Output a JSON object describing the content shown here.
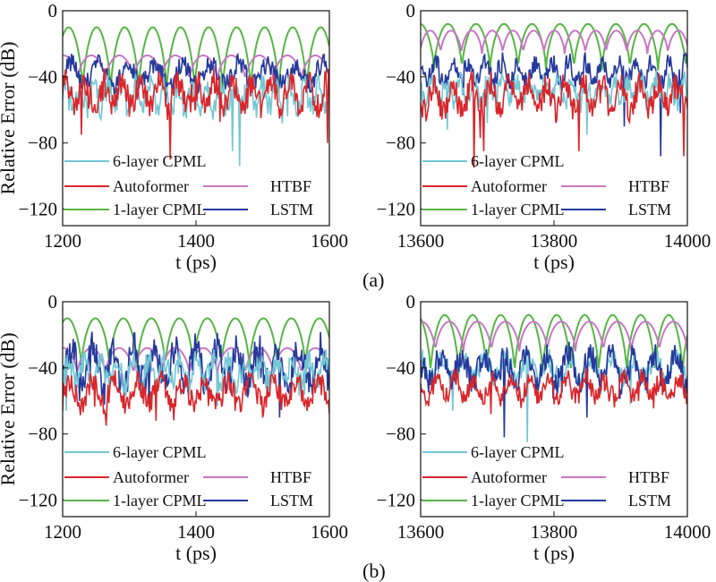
{
  "panel_labels": [
    "(a)",
    "(b)"
  ],
  "colors": {
    "6-layer CPML": "#74c7d4",
    "Autoformer": "#d9262b",
    "HTBF": "#c677c4",
    "1-layer CPML": "#57b545",
    "LSTM": "#24399b"
  },
  "chart_data": [
    {
      "type": "line",
      "panel": "(a) left",
      "xlabel": "t (ps)",
      "ylabel": "Relative Error (dB)",
      "xlim": [
        1200,
        1600
      ],
      "ylim": [
        -130,
        0
      ],
      "xticks": [
        1200,
        1400,
        1600
      ],
      "yticks": [
        0,
        -40,
        -80,
        -120
      ],
      "ytick_labels": [
        "0",
        "−40",
        "−80",
        "−120"
      ],
      "legend": [
        {
          "label": "6-layer CPML",
          "series": "6-layer CPML"
        },
        {
          "label": "Autoformer",
          "series": "Autoformer"
        },
        {
          "label": "HTBF",
          "series": "HTBF"
        },
        {
          "label": "1-layer CPML",
          "series": "1-layer CPML"
        },
        {
          "label": "LSTM",
          "series": "LSTM"
        }
      ],
      "series": [
        {
          "name": "1-layer CPML",
          "kind": "arch",
          "base": -10,
          "dip": -50,
          "period": 42,
          "phase": 1230
        },
        {
          "name": "HTBF",
          "kind": "arch",
          "base": -27,
          "dip": -42,
          "period": 42,
          "phase": 1222
        },
        {
          "name": "LSTM",
          "kind": "noisy",
          "mean": -38,
          "amp": 6,
          "period": 42,
          "spikes": [
            [
              1478,
              -54
            ],
            [
              1355,
              -58
            ]
          ]
        },
        {
          "name": "6-layer CPML",
          "kind": "noisy",
          "mean": -52,
          "amp": 7,
          "period": 21,
          "spikes": [
            [
              1455,
              -85
            ],
            [
              1465,
              -94
            ],
            [
              1238,
              -65
            ]
          ]
        },
        {
          "name": "Autoformer",
          "kind": "noisy",
          "mean": -50,
          "amp": 8,
          "period": 28,
          "spikes": [
            [
              1362,
              -90
            ],
            [
              1228,
              -75
            ],
            [
              1598,
              -80
            ]
          ]
        }
      ]
    },
    {
      "type": "line",
      "panel": "(a) right",
      "xlabel": "t (ps)",
      "ylabel": "",
      "xlim": [
        13600,
        14000
      ],
      "ylim": [
        -130,
        0
      ],
      "xticks": [
        13600,
        13800,
        14000
      ],
      "yticks": [
        0,
        -40,
        -80,
        -120
      ],
      "ytick_labels": [
        "0",
        "−40",
        "−80",
        "−120"
      ],
      "legend": [
        {
          "label": "6-layer CPML",
          "series": "6-layer CPML"
        },
        {
          "label": "Autoformer",
          "series": "Autoformer"
        },
        {
          "label": "HTBF",
          "series": "HTBF"
        },
        {
          "label": "1-layer CPML",
          "series": "1-layer CPML"
        },
        {
          "label": "LSTM",
          "series": "LSTM"
        }
      ],
      "series": [
        {
          "name": "1-layer CPML",
          "kind": "arch",
          "base": -8,
          "dip": -36,
          "period": 42,
          "phase": 13620
        },
        {
          "name": "HTBF",
          "kind": "arch",
          "base": -12,
          "dip": -26,
          "period": 31,
          "phase": 13630
        },
        {
          "name": "LSTM",
          "kind": "noisy",
          "mean": -37,
          "amp": 6,
          "period": 25,
          "spikes": [
            [
              13905,
              -70
            ],
            [
              13990,
              -62
            ],
            [
              13960,
              -88
            ]
          ]
        },
        {
          "name": "6-layer CPML",
          "kind": "noisy",
          "mean": -48,
          "amp": 6,
          "period": 21,
          "spikes": [
            [
              13640,
              -72
            ],
            [
              13850,
              -75
            ],
            [
              13700,
              -68
            ]
          ]
        },
        {
          "name": "Autoformer",
          "kind": "noisy",
          "mean": -52,
          "amp": 8,
          "period": 28,
          "spikes": [
            [
              13680,
              -95
            ],
            [
              13695,
              -85
            ],
            [
              13838,
              -85
            ],
            [
              13995,
              -88
            ]
          ]
        }
      ]
    },
    {
      "type": "line",
      "panel": "(b) left",
      "xlabel": "t (ps)",
      "ylabel": "Relative Error (dB)",
      "xlim": [
        1200,
        1600
      ],
      "ylim": [
        -130,
        0
      ],
      "xticks": [
        1200,
        1400,
        1600
      ],
      "yticks": [
        0,
        -40,
        -80,
        -120
      ],
      "ytick_labels": [
        "0",
        "−40",
        "−80",
        "−120"
      ],
      "legend": [
        {
          "label": "6-layer CPML",
          "series": "6-layer CPML"
        },
        {
          "label": "Autoformer",
          "series": "Autoformer"
        },
        {
          "label": "HTBF",
          "series": "HTBF"
        },
        {
          "label": "1-layer CPML",
          "series": "1-layer CPML"
        },
        {
          "label": "LSTM",
          "series": "LSTM"
        }
      ],
      "series": [
        {
          "name": "1-layer CPML",
          "kind": "arch",
          "base": -10,
          "dip": -40,
          "period": 42,
          "phase": 1228
        },
        {
          "name": "HTBF",
          "kind": "arch",
          "base": -28,
          "dip": -44,
          "period": 42,
          "phase": 1222
        },
        {
          "name": "LSTM",
          "kind": "noisy",
          "mean": -38,
          "amp": 10,
          "period": 31,
          "spikes": [
            [
              1225,
              -60
            ],
            [
              1330,
              -62
            ],
            [
              1525,
              -70
            ]
          ]
        },
        {
          "name": "6-layer CPML",
          "kind": "noisy",
          "mean": -42,
          "amp": 7,
          "period": 24,
          "spikes": [
            [
              1205,
              -66
            ],
            [
              1432,
              -63
            ]
          ]
        },
        {
          "name": "Autoformer",
          "kind": "noisy",
          "mean": -55,
          "amp": 7,
          "period": 34,
          "spikes": [
            [
              1265,
              -75
            ],
            [
              1340,
              -72
            ],
            [
              1500,
              -70
            ]
          ]
        }
      ]
    },
    {
      "type": "line",
      "panel": "(b) right",
      "xlabel": "t (ps)",
      "ylabel": "",
      "xlim": [
        13600,
        14000
      ],
      "ylim": [
        -130,
        0
      ],
      "xticks": [
        13600,
        13800,
        14000
      ],
      "yticks": [
        0,
        -40,
        -80,
        -120
      ],
      "ytick_labels": [
        "0",
        "−40",
        "−80",
        "−120"
      ],
      "legend": [
        {
          "label": "6-layer CPML",
          "series": "6-layer CPML"
        },
        {
          "label": "Autoformer",
          "series": "Autoformer"
        },
        {
          "label": "HTBF",
          "series": "HTBF"
        },
        {
          "label": "1-layer CPML",
          "series": "1-layer CPML"
        },
        {
          "label": "LSTM",
          "series": "LSTM"
        }
      ],
      "series": [
        {
          "name": "1-layer CPML",
          "kind": "arch",
          "base": -8,
          "dip": -44,
          "period": 42,
          "phase": 13615
        },
        {
          "name": "HTBF",
          "kind": "arch",
          "base": -12,
          "dip": -30,
          "period": 42,
          "phase": 13622
        },
        {
          "name": "6-layer CPML",
          "kind": "noisy",
          "mean": -40,
          "amp": 6,
          "period": 32,
          "spikes": [
            [
              13648,
              -66
            ],
            [
              13760,
              -85
            ],
            [
              13915,
              -62
            ]
          ]
        },
        {
          "name": "LSTM",
          "kind": "noisy",
          "mean": -40,
          "amp": 8,
          "period": 32,
          "spikes": [
            [
              13725,
              -82
            ],
            [
              13850,
              -70
            ]
          ]
        },
        {
          "name": "Autoformer",
          "kind": "noisy",
          "mean": -52,
          "amp": 6,
          "period": 28,
          "spikes": [
            [
              13705,
              -68
            ],
            [
              13800,
              -62
            ]
          ]
        }
      ]
    }
  ]
}
